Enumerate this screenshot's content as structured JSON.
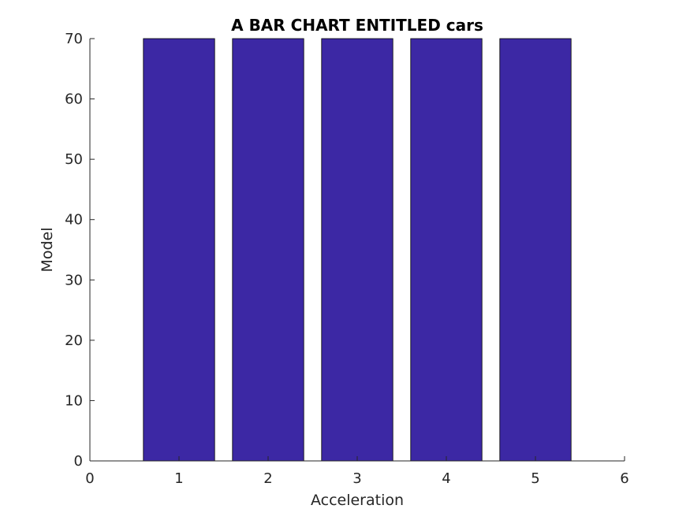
{
  "chart_data": {
    "type": "bar",
    "title": "A BAR CHART ENTITLED cars",
    "xlabel": "Acceleration",
    "ylabel": "Model",
    "x": [
      1,
      2,
      3,
      4,
      5
    ],
    "values": [
      70,
      70,
      70,
      70,
      70
    ],
    "xlim": [
      0,
      6
    ],
    "ylim": [
      0,
      70
    ],
    "xticks": [
      0,
      1,
      2,
      3,
      4,
      5,
      6
    ],
    "yticks": [
      0,
      10,
      20,
      30,
      40,
      50,
      60,
      70
    ],
    "bar_color": "#3c28a4",
    "grid": false,
    "legend": "none"
  }
}
